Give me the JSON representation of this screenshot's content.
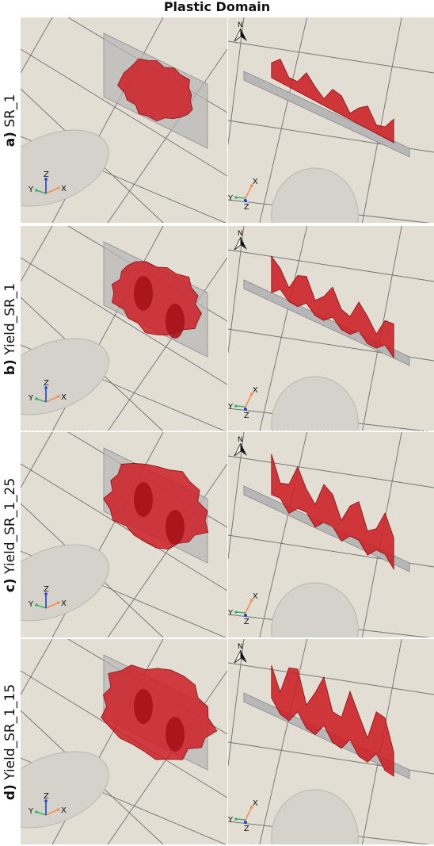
{
  "title": "Plastic Domain",
  "rows": [
    {
      "letter": "a)",
      "name": "SR_1"
    },
    {
      "letter": "b)",
      "name": "Yield_SR_1"
    },
    {
      "letter": "c)",
      "name": "Yield_SR_1_25"
    },
    {
      "letter": "d)",
      "name": "Yield_SR_1_15"
    }
  ],
  "axes": {
    "x": "X",
    "y": "Y",
    "z": "Z",
    "north": "N"
  },
  "colors": {
    "background": "#e2ded4",
    "grid": "#6f6f6f",
    "plastic_domain": "#cc1f24",
    "plate": "#b7b7b7",
    "ellipsoid": "#d4d2cb",
    "x_axis": "#f0904f",
    "y_axis": "#3ab36b",
    "z_axis": "#1f3fd6"
  }
}
